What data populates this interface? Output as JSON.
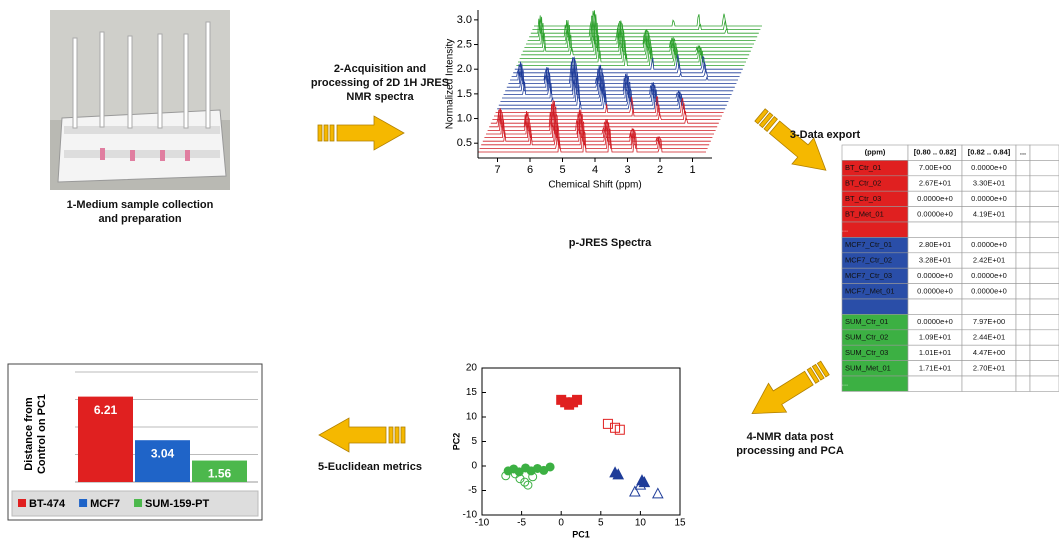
{
  "steps": {
    "sample": "1-Medium sample collection and preparation",
    "acquisition": "2-Acquisition and processing of 2D 1H JRES NMR spectra",
    "spectra_label": "p-JRES Spectra",
    "export": "3-Data export",
    "pca": "4-NMR data post processing and PCA",
    "metrics": "5-Euclidean metrics"
  },
  "spectra": {
    "ylabel": "Normalized Intensity",
    "xlabel": "Chemical Shift (ppm)",
    "xlim": [
      7.6,
      0.4
    ],
    "ylim": [
      0.2,
      3.2
    ],
    "xticks": [
      7,
      6,
      5,
      4,
      3,
      2,
      1
    ],
    "yticks": [
      0.5,
      {
        "value": 1,
        "label": "1.0"
      },
      1.5,
      {
        "value": 2,
        "label": "2.0"
      },
      2.5,
      {
        "value": 3,
        "label": "3.0"
      }
    ],
    "colors": [
      "#d01c24",
      "#1f3c99",
      "#2ca02c"
    ]
  },
  "table": {
    "header": [
      "(ppm)",
      "[0.80 .. 0.82]",
      "[0.82 .. 0.84]",
      "..."
    ],
    "groups": [
      {
        "color": "#e02020",
        "rows": [
          [
            "BT_Ctr_01",
            "7.00E+00",
            "0.0000e+0"
          ],
          [
            "BT_Ctr_02",
            "2.67E+01",
            "3.30E+01"
          ],
          [
            "BT_Ctr_03",
            "0.0000e+0",
            "0.0000e+0"
          ],
          [
            "BT_Met_01",
            "0.0000e+0",
            "4.19E+01"
          ],
          [
            "..."
          ]
        ]
      },
      {
        "color": "#2a4ea8",
        "rows": [
          [
            "MCF7_Ctr_01",
            "2.80E+01",
            "0.0000e+0"
          ],
          [
            "MCF7_Ctr_02",
            "3.28E+01",
            "2.42E+01"
          ],
          [
            "MCF7_Ctr_03",
            "0.0000e+0",
            "0.0000e+0"
          ],
          [
            "MCF7_Met_01",
            "0.0000e+0",
            "0.0000e+0"
          ],
          []
        ]
      },
      {
        "color": "#3cb043",
        "rows": [
          [
            "SUM_Ctr_01",
            "0.0000e+0",
            "7.97E+00"
          ],
          [
            "SUM_Ctr_02",
            "1.09E+01",
            "2.44E+01"
          ],
          [
            "SUM_Ctr_03",
            "1.01E+01",
            "4.47E+00"
          ],
          [
            "SUM_Met_01",
            "1.71E+01",
            "2.70E+01"
          ],
          [
            "..."
          ]
        ]
      }
    ]
  },
  "pca": {
    "type": "scatter",
    "xlabel": "PC1",
    "ylabel": "PC2",
    "xlim": [
      -10,
      15
    ],
    "ylim": [
      -10,
      20
    ],
    "xticks": [
      -10,
      -5,
      0,
      5,
      10,
      15
    ],
    "yticks": [
      -10,
      -5,
      0,
      5,
      10,
      15,
      20
    ],
    "series": [
      {
        "color": "#e02020",
        "marker": "square",
        "filled": true,
        "x": [
          0,
          0.5,
          1,
          1.5,
          2
        ],
        "values": [
          13.5,
          13,
          12.5,
          13,
          13.5
        ]
      },
      {
        "color": "#e02020",
        "marker": "square",
        "filled": false,
        "x": [
          5.9,
          6.8,
          7.4
        ],
        "values": [
          8.6,
          7.8,
          7.4
        ]
      },
      {
        "color": "#1f3c99",
        "marker": "triangle",
        "filled": true,
        "x": [
          6.8,
          7.2,
          10.2,
          10.5
        ],
        "values": [
          -1.4,
          -1.8,
          -3,
          -3.4
        ]
      },
      {
        "color": "#1f3c99",
        "marker": "triangle",
        "filled": false,
        "x": [
          9.3,
          10,
          12.2
        ],
        "values": [
          -5.3,
          -3.9,
          -5.7
        ]
      },
      {
        "color": "#3cb043",
        "marker": "circle",
        "filled": true,
        "x": [
          -6.7,
          -6,
          -5.3,
          -4.5,
          -3.8,
          -3,
          -2.2,
          -1.4
        ],
        "values": [
          -1,
          -0.6,
          -1.2,
          -0.4,
          -1,
          -0.5,
          -0.9,
          -0.2
        ]
      },
      {
        "color": "#3cb043",
        "marker": "circle",
        "filled": false,
        "x": [
          -7,
          -5.8,
          -4.6,
          -3.6,
          -4.2,
          -5.2
        ],
        "values": [
          -2,
          -1.6,
          -3.3,
          -2.2,
          -3.9,
          -2.6
        ]
      }
    ]
  },
  "bar": {
    "type": "bar",
    "ylabel": "Distance from Control on PC1",
    "categories": [
      "BT-474",
      "MCF7",
      "SUM-159-PT"
    ],
    "values": [
      6.21,
      3.04,
      1.56
    ],
    "colors": [
      "#e02020",
      "#1f64c8",
      "#4cb84c"
    ],
    "ylim": [
      0,
      8
    ],
    "gridlines": [
      2,
      4,
      6,
      8
    ],
    "legend": "bottom"
  }
}
